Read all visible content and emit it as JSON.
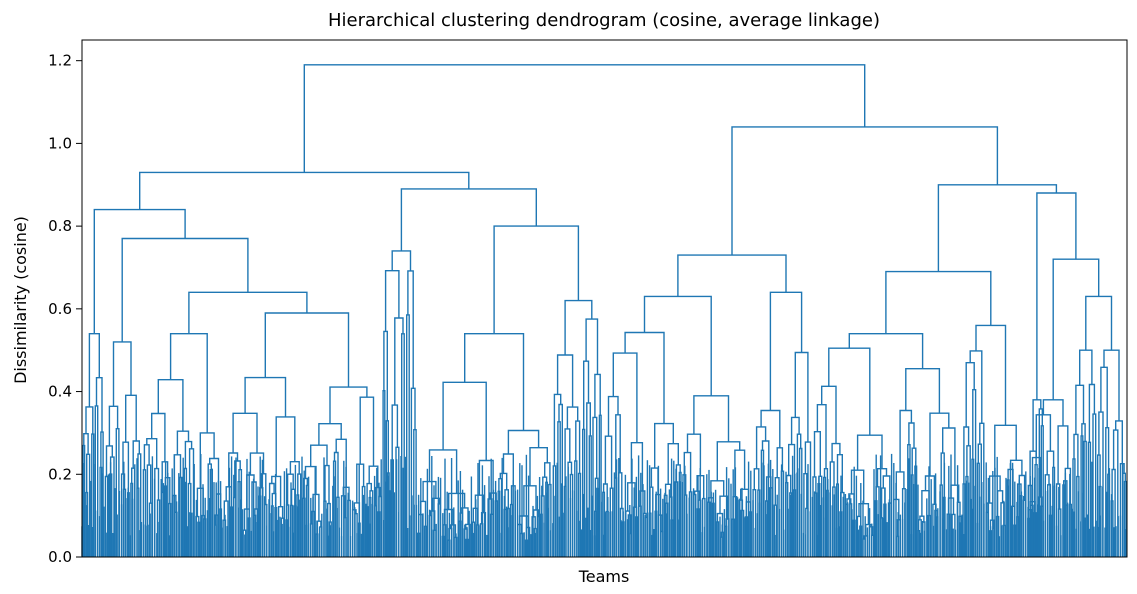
{
  "chart_data": {
    "type": "dendrogram",
    "title": "Hierarchical clustering dendrogram (cosine, average linkage)",
    "xlabel": "Teams",
    "ylabel": "Dissimilarity (cosine)",
    "ylim": [
      0,
      1.25
    ],
    "yticks": [
      0.0,
      0.2,
      0.4,
      0.6,
      0.8,
      1.0,
      1.2
    ],
    "ytick_labels": [
      "0.0",
      "0.2",
      "0.4",
      "0.6",
      "0.8",
      "1.0",
      "1.2"
    ],
    "x_ticks_shown": false,
    "grid": false,
    "line_color": "#1f77b4",
    "merge_heights_major": [
      1.19,
      1.04,
      0.93,
      0.9,
      0.89,
      0.88,
      0.84,
      0.8,
      0.77,
      0.74,
      0.73,
      0.72,
      0.69,
      0.64,
      0.64,
      0.63,
      0.63,
      0.62,
      0.59,
      0.56,
      0.54,
      0.54,
      0.54,
      0.54,
      0.53,
      0.52,
      0.52,
      0.5,
      0.5
    ],
    "merge_heights_upper": [
      {
        "height": 1.19,
        "left": 0.93,
        "right": 1.04
      },
      {
        "height": 0.93,
        "left": 0.84,
        "right": 0.89
      },
      {
        "height": 0.84,
        "left": 0.54,
        "right": 0.77
      },
      {
        "height": 0.77,
        "left": 0.52,
        "right": 0.64
      },
      {
        "height": 0.89,
        "left": 0.74,
        "right": 0.8
      },
      {
        "height": 0.8,
        "left": 0.54,
        "right": 0.62
      },
      {
        "height": 1.04,
        "left": 0.73,
        "right": 0.9
      },
      {
        "height": 0.73,
        "left": 0.63,
        "right": 0.64
      },
      {
        "height": 0.9,
        "left": 0.69,
        "right": 0.88
      },
      {
        "height": 0.69,
        "left": 0.54,
        "right": 0.56
      },
      {
        "height": 0.88,
        "left": 0.38,
        "right": 0.72
      },
      {
        "height": 0.72,
        "left": 0.5,
        "right": 0.63
      }
    ]
  }
}
